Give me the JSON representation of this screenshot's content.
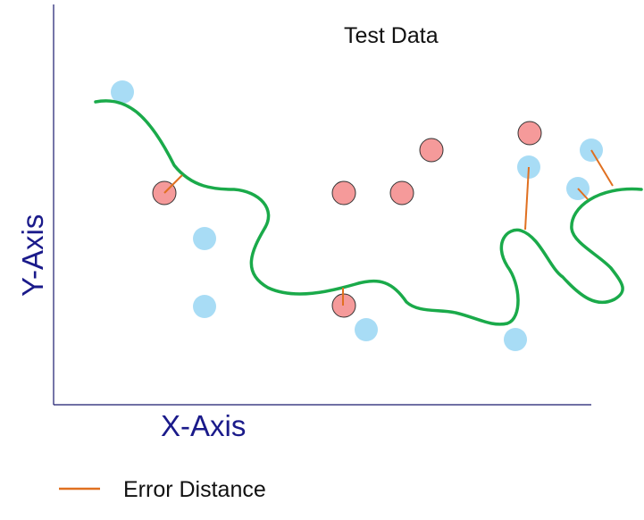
{
  "title": "Test Data",
  "x_axis_label": "X-Axis",
  "y_axis_label": "Y-Axis",
  "legend": {
    "error_label": "Error Distance"
  },
  "colors": {
    "axis": "#1a1a6e",
    "label": "#1a1a8a",
    "curve": "#1aaa4a",
    "error": "#e07020",
    "class_a": "#a8dcf5",
    "class_b": "#f59a9a",
    "class_b_stroke": "#333333",
    "text": "#111111"
  }
}
